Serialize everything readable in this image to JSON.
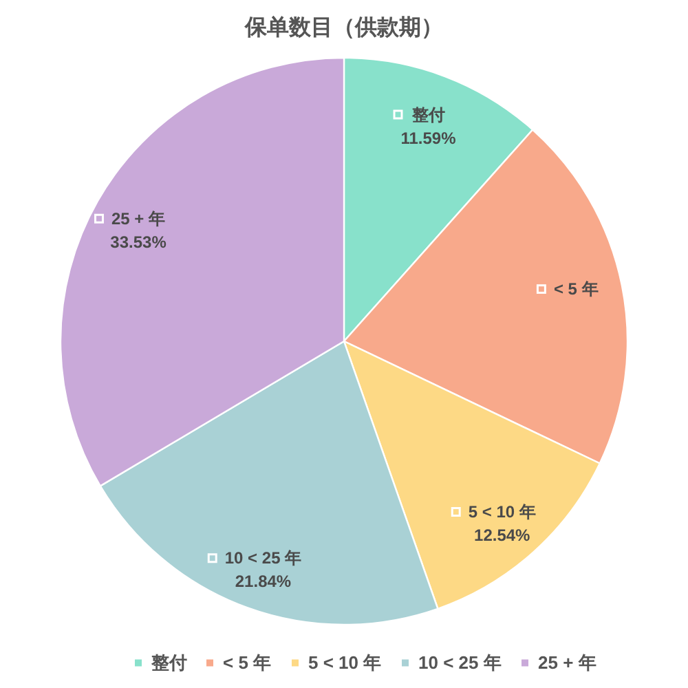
{
  "chart_data": {
    "type": "pie",
    "title": "保单数目（供款期）",
    "categories": [
      "整付",
      "< 5 年",
      "5 < 10 年",
      "10 < 25 年",
      "25 + 年"
    ],
    "values": [
      11.59,
      20.5,
      12.54,
      21.84,
      33.53
    ],
    "value_labels": [
      "11.59%",
      null,
      "12.54%",
      "21.84%",
      "33.53%"
    ],
    "colors": [
      "#88e1cb",
      "#f8a98b",
      "#fdd985",
      "#a9d1d5",
      "#c9a9d9"
    ],
    "legend": "bottom"
  }
}
